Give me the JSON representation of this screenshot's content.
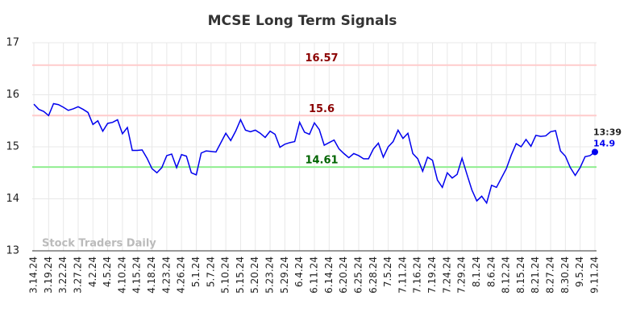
{
  "chart_data": {
    "type": "line",
    "title": "MCSE Long Term Signals",
    "categories": [
      "3.14.24",
      null,
      null,
      "3.19.24",
      null,
      null,
      "3.22.24",
      null,
      null,
      "3.27.24",
      null,
      null,
      "4.2.24",
      null,
      null,
      "4.5.24",
      null,
      null,
      "4.10.24",
      null,
      null,
      "4.15.24",
      null,
      null,
      "4.18.24",
      null,
      null,
      "4.23.24",
      null,
      null,
      "4.26.24",
      null,
      null,
      "5.1.24",
      null,
      null,
      "5.7.24",
      null,
      null,
      "5.10.24",
      null,
      null,
      "5.15.24",
      null,
      null,
      "5.20.24",
      null,
      null,
      "5.23.24",
      null,
      null,
      "5.29.24",
      null,
      null,
      "6.4.24",
      null,
      null,
      "6.11.24",
      null,
      null,
      "6.14.24",
      null,
      null,
      "6.20.24",
      null,
      null,
      "6.25.24",
      null,
      null,
      "6.28.24",
      null,
      null,
      "7.5.24",
      null,
      null,
      "7.11.24",
      null,
      null,
      "7.16.24",
      null,
      null,
      "7.19.24",
      null,
      null,
      "7.24.24",
      null,
      null,
      "7.29.24",
      null,
      null,
      "8.1.24",
      null,
      null,
      "8.6.24",
      null,
      null,
      "8.12.24",
      null,
      null,
      "8.15.24",
      null,
      null,
      "8.21.24",
      null,
      null,
      "8.27.24",
      null,
      null,
      "8.30.24",
      null,
      null,
      "9.5.24",
      null,
      null,
      "9.11.24"
    ],
    "series": [
      {
        "color": "#0000ee",
        "values": [
          15.82,
          15.72,
          15.68,
          15.6,
          15.83,
          15.81,
          15.76,
          15.7,
          15.73,
          15.77,
          15.72,
          15.66,
          15.43,
          15.5,
          15.3,
          15.45,
          15.47,
          15.52,
          15.25,
          15.37,
          14.93,
          14.93,
          14.94,
          14.78,
          14.58,
          14.5,
          14.6,
          14.83,
          14.86,
          14.6,
          14.85,
          14.82,
          14.5,
          14.46,
          14.88,
          14.92,
          14.91,
          14.9,
          15.08,
          15.26,
          15.12,
          15.3,
          15.52,
          15.32,
          15.29,
          15.32,
          15.26,
          15.18,
          15.3,
          15.24,
          14.99,
          15.05,
          15.08,
          15.1,
          15.47,
          15.28,
          15.24,
          15.46,
          15.33,
          15.03,
          15.08,
          15.13,
          14.96,
          14.87,
          14.79,
          14.87,
          14.83,
          14.77,
          14.77,
          14.96,
          15.07,
          14.8,
          15.0,
          15.1,
          15.32,
          15.16,
          15.26,
          14.87,
          14.77,
          14.53,
          14.8,
          14.74,
          14.36,
          14.22,
          14.5,
          14.4,
          14.47,
          14.78,
          14.47,
          14.17,
          13.96,
          14.05,
          13.92,
          14.26,
          14.22,
          14.4,
          14.58,
          14.84,
          15.06,
          15.0,
          15.14,
          15.01,
          15.22,
          15.2,
          15.21,
          15.29,
          15.31,
          14.92,
          14.82,
          14.6,
          14.45,
          14.6,
          14.81,
          14.83,
          14.9
        ]
      }
    ],
    "ylim": [
      13,
      17
    ],
    "yticks": [
      13,
      14,
      15,
      16,
      17
    ],
    "grid": true,
    "hlines": [
      {
        "value": 16.57,
        "color": "#ffcccc",
        "label_color": "#8b0000"
      },
      {
        "value": 15.6,
        "color": "#ffcccc",
        "label_color": "#8b0000"
      },
      {
        "value": 14.61,
        "color": "#90ee90",
        "label_color": "#006400"
      }
    ],
    "last_time": "13:39",
    "watermark": "Stock Traders Daily"
  }
}
